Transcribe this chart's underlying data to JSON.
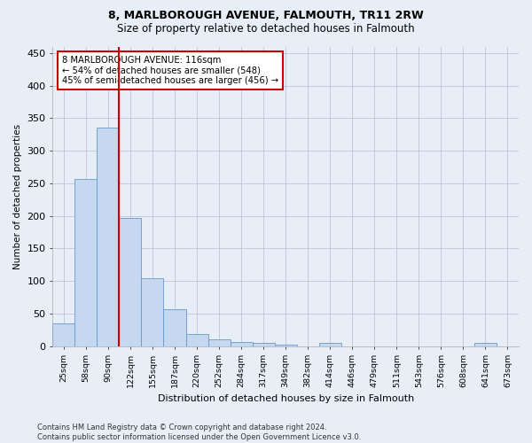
{
  "title": "8, MARLBOROUGH AVENUE, FALMOUTH, TR11 2RW",
  "subtitle": "Size of property relative to detached houses in Falmouth",
  "xlabel": "Distribution of detached houses by size in Falmouth",
  "ylabel": "Number of detached properties",
  "bar_color": "#c5d8f0",
  "bar_edge_color": "#6699cc",
  "background_color": "#e8eef8",
  "grid_color": "#bbbbcc",
  "categories": [
    "25sqm",
    "58sqm",
    "90sqm",
    "122sqm",
    "155sqm",
    "187sqm",
    "220sqm",
    "252sqm",
    "284sqm",
    "317sqm",
    "349sqm",
    "382sqm",
    "414sqm",
    "446sqm",
    "479sqm",
    "511sqm",
    "543sqm",
    "576sqm",
    "608sqm",
    "641sqm",
    "673sqm"
  ],
  "values": [
    35,
    256,
    336,
    197,
    104,
    57,
    19,
    10,
    7,
    5,
    2,
    0,
    5,
    0,
    0,
    0,
    0,
    0,
    0,
    5,
    0
  ],
  "marker_bin": 3,
  "marker_color": "#cc0000",
  "annotation_line1": "8 MARLBOROUGH AVENUE: 116sqm",
  "annotation_line2": "← 54% of detached houses are smaller (548)",
  "annotation_line3": "45% of semi-detached houses are larger (456) →",
  "annotation_box_color": "#ffffff",
  "annotation_box_edge_color": "#cc0000",
  "ylim": [
    0,
    460
  ],
  "yticks": [
    0,
    50,
    100,
    150,
    200,
    250,
    300,
    350,
    400,
    450
  ],
  "title_fontsize": 9,
  "subtitle_fontsize": 8.5,
  "footer": "Contains HM Land Registry data © Crown copyright and database right 2024.\nContains public sector information licensed under the Open Government Licence v3.0."
}
